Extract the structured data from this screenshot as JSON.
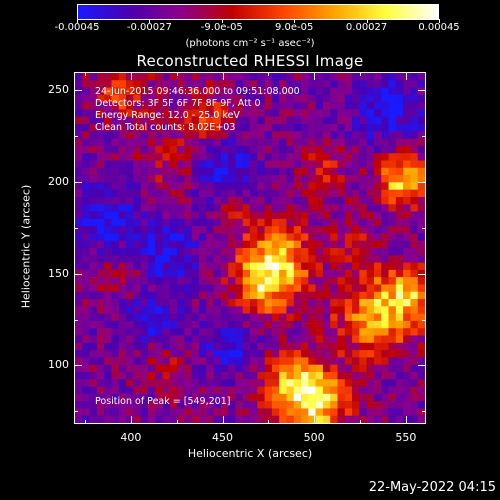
{
  "colorbar": {
    "ticks": [
      "-0.00045",
      "-0.00027",
      "-9.0e-05",
      "9.0e-05",
      "0.00027",
      "0.00045"
    ],
    "units_label": "(photons cm⁻² s⁻¹ asec⁻²)",
    "colors": [
      "#1a1aff",
      "#4a00b0",
      "#8b008b",
      "#c00000",
      "#ff4500",
      "#ffa500",
      "#ffff40",
      "#ffffff"
    ]
  },
  "title": "Reconstructed RHESSI Image",
  "info": {
    "time_range": "24-Jun-2015 09:46:36.000 to 09:51:08.000",
    "detectors": "Detectors: 3F 5F 6F 7F 8F 9F, Att 0",
    "energy_range": "Energy Range: 12.0 - 25.0 keV",
    "method": "Clean    Total counts: 8.02E+03",
    "peak": "Position of Peak = [549,201]"
  },
  "axes": {
    "xlabel": "Heliocentric X (arcsec)",
    "ylabel": "Heliocentric Y (arcsec)",
    "xticks": [
      "400",
      "450",
      "500",
      "550"
    ],
    "yticks": [
      "250",
      "200",
      "150",
      "100"
    ],
    "xlim": [
      369,
      561
    ],
    "ylim": [
      68,
      260
    ]
  },
  "chart_data": {
    "type": "heatmap",
    "title": "Reconstructed RHESSI Image",
    "xlabel": "Heliocentric X (arcsec)",
    "ylabel": "Heliocentric Y (arcsec)",
    "xlim": [
      369,
      561
    ],
    "ylim": [
      68,
      260
    ],
    "zlim": [
      -0.00045,
      0.00045
    ],
    "peak": [
      549,
      201
    ]
  },
  "timestamp": "22-May-2022 04:15"
}
